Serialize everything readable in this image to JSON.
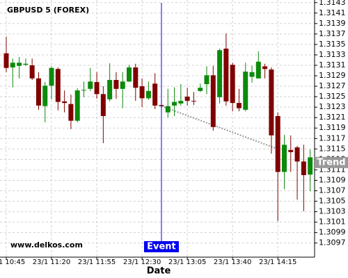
{
  "chart_data": {
    "type": "candlestick",
    "title": "GBPUSD 5 (FOREX)",
    "watermark": "www.delkos.com",
    "x_label": "Date",
    "categories": [
      "23/1 10:45",
      null,
      null,
      null,
      null,
      null,
      null,
      "23/1 11:20",
      null,
      null,
      null,
      null,
      null,
      null,
      "23/1 11:55",
      null,
      null,
      null,
      null,
      null,
      null,
      "23/1 12:30",
      null,
      null,
      null,
      null,
      null,
      null,
      "23/1 13:05",
      null,
      null,
      null,
      null,
      null,
      null,
      "23/1 13:40",
      null,
      null,
      null,
      null,
      null,
      null,
      "23/1 14:15",
      null,
      null,
      null,
      null,
      null
    ],
    "open": [
      1.31333,
      1.31306,
      1.31309,
      1.31311,
      1.3131,
      1.31285,
      1.31232,
      1.31271,
      1.31303,
      1.31241,
      1.31236,
      1.31204,
      1.31262,
      1.31265,
      1.31278,
      1.31255,
      1.31245,
      1.31282,
      1.31265,
      1.31279,
      1.31306,
      1.3127,
      1.31247,
      1.31275,
      1.31234,
      1.3122,
      1.31233,
      1.31237,
      1.3125,
      1.31242,
      1.31261,
      1.31274,
      1.31291,
      1.31249,
      1.31342,
      1.31311,
      1.31238,
      1.31225,
      1.31288,
      1.31285,
      1.31308,
      1.31302,
      1.31213,
      1.31106,
      1.31148,
      1.31153,
      1.31126,
      1.31101
    ],
    "high": [
      1.31365,
      1.31323,
      1.31326,
      1.31323,
      1.31323,
      1.31297,
      1.31278,
      1.31308,
      1.31306,
      1.31262,
      1.31254,
      1.31266,
      1.31279,
      1.31305,
      1.31297,
      1.3127,
      1.31314,
      1.31297,
      1.31297,
      1.31311,
      1.31313,
      1.31285,
      1.31279,
      1.31295,
      1.31241,
      1.31265,
      1.31268,
      1.31274,
      1.31267,
      1.31259,
      1.31275,
      1.31308,
      1.31309,
      1.31342,
      1.31371,
      1.31315,
      1.31265,
      1.31315,
      1.31309,
      1.31337,
      1.31313,
      1.31306,
      1.3122,
      1.31177,
      1.31176,
      1.31156,
      1.31158,
      1.31149
    ],
    "low": [
      1.31297,
      1.31268,
      1.31285,
      1.31309,
      1.31282,
      1.31225,
      1.31201,
      1.31245,
      1.31224,
      1.3122,
      1.31188,
      1.31201,
      1.31249,
      1.31261,
      1.31246,
      1.31161,
      1.31241,
      1.31246,
      1.31228,
      1.31278,
      1.31242,
      1.3123,
      1.31244,
      1.31226,
      1.31225,
      1.3121,
      1.31213,
      1.31233,
      1.31233,
      1.31234,
      1.31259,
      1.31255,
      1.31185,
      1.31237,
      1.31233,
      1.31222,
      1.31222,
      1.31222,
      1.31277,
      1.31285,
      1.31285,
      1.31141,
      1.31012,
      1.31073,
      1.31106,
      1.31053,
      1.31031,
      1.31069
    ],
    "close": [
      1.31305,
      1.31315,
      1.31315,
      1.31313,
      1.31285,
      1.31233,
      1.31271,
      1.31305,
      1.3124,
      1.31238,
      1.31204,
      1.31262,
      1.31263,
      1.31279,
      1.31255,
      1.31213,
      1.31282,
      1.31265,
      1.31279,
      1.31306,
      1.31267,
      1.31247,
      1.31261,
      1.31233,
      1.31232,
      1.31232,
      1.3124,
      1.31242,
      1.31242,
      1.31241,
      1.31267,
      1.31291,
      1.31192,
      1.31339,
      1.31241,
      1.31238,
      1.31228,
      1.31298,
      1.31297,
      1.31317,
      1.31303,
      1.31176,
      1.31106,
      1.31158,
      1.31144,
      1.31126,
      1.311,
      1.31134
    ],
    "up_color": "#0b8a0b",
    "down_color": "#800000",
    "ylim": [
      1.30943,
      1.31435
    ],
    "yticks": [
      1.3143,
      1.3141,
      1.3139,
      1.3137,
      1.3135,
      1.3133,
      1.3131,
      1.3129,
      1.3127,
      1.3125,
      1.3123,
      1.3121,
      1.3119,
      1.3117,
      1.3115,
      1.3113,
      1.3111,
      1.3109,
      1.3107,
      1.3105,
      1.3103,
      1.3101,
      1.3099,
      1.3097
    ],
    "grid": true,
    "event": {
      "label": "Event",
      "x": 24,
      "color": "#0000ee"
    },
    "trend": {
      "label": "Trend",
      "x": [
        24,
        42
      ],
      "values": [
        1.31232,
        1.3115
      ],
      "color": "#999999"
    }
  }
}
